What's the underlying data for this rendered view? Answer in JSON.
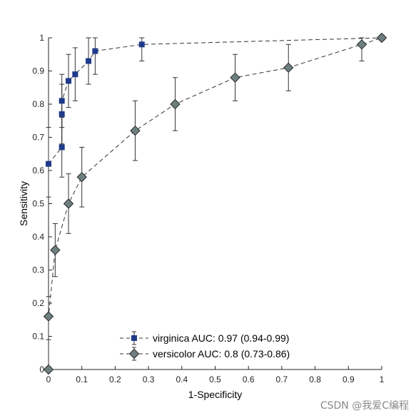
{
  "watermark": "CSDN @我爱C编程",
  "chart_data": {
    "type": "line",
    "xlabel": "1-Specificity",
    "ylabel": "Sensitivity",
    "xlim": [
      0,
      1
    ],
    "ylim": [
      0,
      1
    ],
    "xticks": [
      "0",
      "0.1",
      "0.2",
      "0.3",
      "0.4",
      "0.5",
      "0.6",
      "0.7",
      "0.8",
      "0.9",
      "1"
    ],
    "yticks": [
      "0",
      "0.1",
      "0.2",
      "0.3",
      "0.4",
      "0.5",
      "0.6",
      "0.7",
      "0.8",
      "0.9",
      "1"
    ],
    "grid": false,
    "legend_position": "bottom-center",
    "series": [
      {
        "name": "virginica AUC: 0.97 (0.94-0.99)",
        "marker": "square",
        "color": "#1f3a8a",
        "line_style": "dashed",
        "x": [
          0,
          0.04,
          0.04,
          0.04,
          0.06,
          0.08,
          0.12,
          0.14,
          0.28,
          1.0
        ],
        "y": [
          0.62,
          0.67,
          0.77,
          0.81,
          0.87,
          0.89,
          0.93,
          0.96,
          0.98,
          1.0
        ],
        "y_lower": [
          0.52,
          0.58,
          0.68,
          0.73,
          0.79,
          0.81,
          0.86,
          0.89,
          0.93,
          1.0
        ],
        "y_upper": [
          0.73,
          0.76,
          0.86,
          0.89,
          0.95,
          0.97,
          1.0,
          1.0,
          1.0,
          1.0
        ]
      },
      {
        "name": "versicolor AUC: 0.8 (0.73-0.86)",
        "marker": "diamond",
        "color": "#6e7f80",
        "line_style": "dashed",
        "x": [
          0,
          0,
          0.02,
          0.06,
          0.1,
          0.26,
          0.38,
          0.56,
          0.72,
          0.94,
          1.0
        ],
        "y": [
          0,
          0.16,
          0.36,
          0.5,
          0.58,
          0.72,
          0.8,
          0.88,
          0.91,
          0.98,
          1.0
        ],
        "y_lower": [
          0,
          0.09,
          0.28,
          0.41,
          0.49,
          0.63,
          0.72,
          0.81,
          0.84,
          0.93,
          1.0
        ],
        "y_upper": [
          0,
          0.22,
          0.44,
          0.59,
          0.67,
          0.81,
          0.88,
          0.95,
          0.98,
          1.0,
          1.0
        ]
      }
    ]
  }
}
